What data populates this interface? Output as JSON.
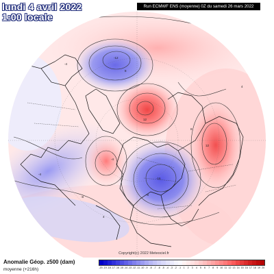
{
  "header": {
    "date_line": "lundi 4 avril 2022",
    "time_line": "1:00 locale",
    "run_info": "Run ECMWF ENS (moyenne) 0Z du samedi 26 mars 2022"
  },
  "footer": {
    "variable_title": "Anomalie Géop. z500 (dam)",
    "variable_subtitle": "moyenne   (+216h)",
    "copyright": "Copyright(c) 2022 Meteociel.fr"
  },
  "legend": {
    "labels": [
      "-20",
      "-19",
      "-18",
      "-17",
      "-16",
      "-15",
      "-14",
      "-13",
      "-12",
      "-11",
      "-10",
      "-9",
      "-8",
      "-7",
      "-6",
      "-5",
      "-4",
      "-3",
      "-2",
      "-1",
      "1",
      "2",
      "3",
      "4",
      "5",
      "6",
      "7",
      "8",
      "9",
      "10",
      "11",
      "12",
      "13",
      "14",
      "15",
      "16",
      "17",
      "18",
      "19",
      "20"
    ],
    "colors": [
      "#0000c8",
      "#1010d0",
      "#2020d6",
      "#3030dc",
      "#4040e0",
      "#5050e4",
      "#6060e8",
      "#7070ec",
      "#8080ee",
      "#8e8ef0",
      "#9c9cf2",
      "#aaaaf4",
      "#b8b8f6",
      "#c4c4f8",
      "#d0d0fa",
      "#dadafb",
      "#e4e4fc",
      "#ececfd",
      "#f4f4fe",
      "#fafaff",
      "#fff4f4",
      "#ffecec",
      "#ffe2e2",
      "#ffd8d8",
      "#ffcccc",
      "#ffc0c0",
      "#ffb2b2",
      "#ffa4a4",
      "#ff9696",
      "#ff8888",
      "#ff7a7a",
      "#ff6a6a",
      "#fa5a5a",
      "#f04848",
      "#e63a3a",
      "#dc2c2c",
      "#d22020",
      "#c81616",
      "#be0c0c",
      "#b40404"
    ]
  },
  "contour_labels": [
    "-12",
    "8",
    "12",
    "-4",
    "8",
    "-16",
    "-8",
    "-8",
    "-4",
    "-4",
    "4",
    "12",
    "4"
  ]
}
